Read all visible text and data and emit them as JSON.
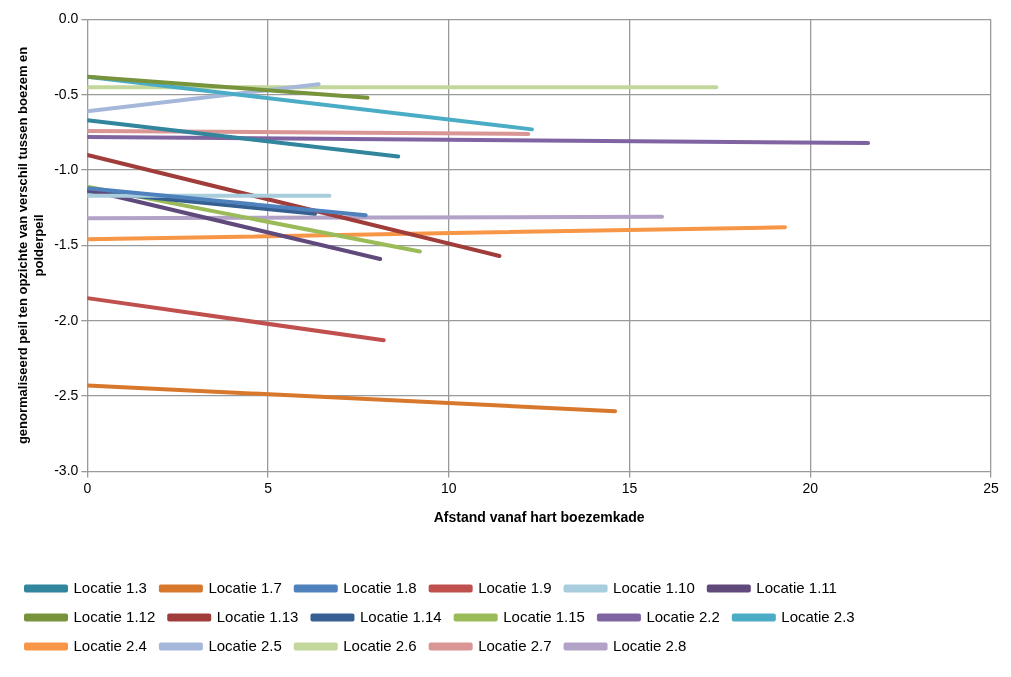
{
  "chart_data": {
    "type": "line",
    "xlabel": "Afstand vanaf hart boezemkade",
    "ylabel": "genormaliseerd peil ten opzichte van verschil tussen boezem en polderpeil",
    "xlim": [
      0,
      25
    ],
    "xticks": [
      0,
      5,
      10,
      15,
      20,
      25
    ],
    "ylim": [
      -3,
      0
    ],
    "yticks": [
      {
        "value": -3,
        "label": "-3.0"
      },
      {
        "value": -2.5,
        "label": "-2.5"
      },
      {
        "value": -2,
        "label": "-2.0"
      },
      {
        "value": -1.5,
        "label": "-1.5"
      },
      {
        "value": -1,
        "label": "-1.0"
      },
      {
        "value": -0.5,
        "label": "-0.5"
      },
      {
        "value": 0,
        "label": "0.0"
      }
    ],
    "grid": true,
    "legend": "bottom",
    "marker": "none",
    "line_style": "solid",
    "series": [
      {
        "name": "Locatie 1.3",
        "color": "#31859c",
        "x": [
          0,
          8.6
        ],
        "values": [
          -0.67,
          -0.91
        ]
      },
      {
        "name": "Locatie 1.7",
        "color": "#d8782c",
        "x": [
          0,
          14.6
        ],
        "values": [
          -2.43,
          -2.6
        ]
      },
      {
        "name": "Locatie 1.8",
        "color": "#4f81bd",
        "x": [
          0,
          7.7
        ],
        "values": [
          -1.12,
          -1.3
        ]
      },
      {
        "name": "Locatie 1.9",
        "color": "#c0504d",
        "x": [
          0,
          8.2
        ],
        "values": [
          -1.85,
          -2.13
        ]
      },
      {
        "name": "Locatie 1.10",
        "color": "#a8cddc",
        "x": [
          0,
          6.7
        ],
        "values": [
          -1.17,
          -1.17
        ]
      },
      {
        "name": "Locatie 1.11",
        "color": "#604a7b",
        "x": [
          0,
          8.1
        ],
        "values": [
          -1.13,
          -1.59
        ]
      },
      {
        "name": "Locatie 1.12",
        "color": "#77933c",
        "x": [
          0,
          7.75
        ],
        "values": [
          -0.38,
          -0.52
        ]
      },
      {
        "name": "Locatie 1.13",
        "color": "#a03c3a",
        "x": [
          0,
          11.4
        ],
        "values": [
          -0.9,
          -1.57
        ]
      },
      {
        "name": "Locatie 1.14",
        "color": "#376092",
        "x": [
          0,
          6.3
        ],
        "values": [
          -1.14,
          -1.29
        ]
      },
      {
        "name": "Locatie 1.15",
        "color": "#9bbb59",
        "x": [
          0,
          9.2
        ],
        "values": [
          -1.11,
          -1.54
        ]
      },
      {
        "name": "Locatie 2.2",
        "color": "#8064a2",
        "x": [
          0,
          21.6
        ],
        "values": [
          -0.78,
          -0.82
        ]
      },
      {
        "name": "Locatie 2.3",
        "color": "#4bacc6",
        "x": [
          0,
          12.3
        ],
        "values": [
          -0.38,
          -0.73
        ]
      },
      {
        "name": "Locatie 2.4",
        "color": "#f79646",
        "x": [
          0,
          19.3
        ],
        "values": [
          -1.46,
          -1.38
        ]
      },
      {
        "name": "Locatie 2.5",
        "color": "#a6b8da",
        "x": [
          0,
          6.4
        ],
        "values": [
          -0.61,
          -0.43
        ]
      },
      {
        "name": "Locatie 2.6",
        "color": "#c3d69b",
        "x": [
          0,
          17.4
        ],
        "values": [
          -0.45,
          -0.45
        ]
      },
      {
        "name": "Locatie 2.7",
        "color": "#d99694",
        "x": [
          0,
          12.2
        ],
        "values": [
          -0.74,
          -0.76
        ]
      },
      {
        "name": "Locatie 2.8",
        "color": "#b3a2c7",
        "x": [
          0,
          15.9
        ],
        "values": [
          -1.32,
          -1.31
        ]
      }
    ]
  }
}
